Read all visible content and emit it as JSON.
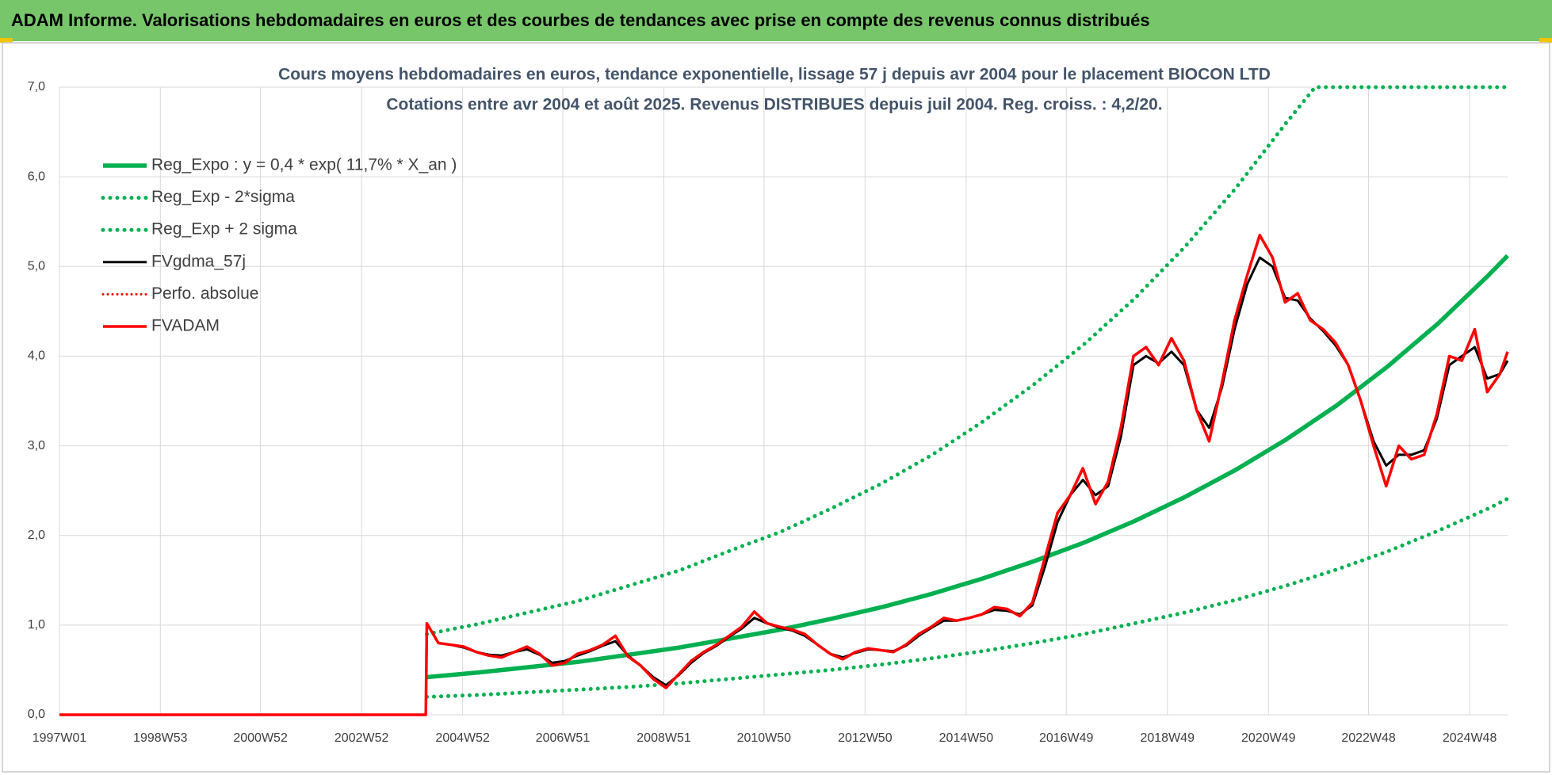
{
  "header": {
    "title": "ADAM Informe. Valorisations hebdomadaires en euros et des courbes de tendances avec prise en compte des revenus connus distribués"
  },
  "chart_data": {
    "type": "line",
    "title": "Cours moyens hebdomadaires en euros, tendance exponentielle, lissage 57 j depuis avr 2004 pour le placement BIOCON LTD",
    "subtitle": "Cotations entre avr 2004 et août 2025. Revenus DISTRIBUES depuis juil 2004. Reg. croiss. : 4,2/20.",
    "xlim": [
      "1997W01",
      "2025W35"
    ],
    "xticks": [
      "1997W01",
      "1998W53",
      "2000W52",
      "2002W52",
      "2004W52",
      "2006W51",
      "2008W51",
      "2010W50",
      "2012W50",
      "2014W50",
      "2016W49",
      "2018W49",
      "2020W49",
      "2022W48",
      "2024W48"
    ],
    "ylim": [
      0,
      7
    ],
    "yticks": [
      {
        "value": 0,
        "label": "0,0"
      },
      {
        "value": 1,
        "label": "1,0"
      },
      {
        "value": 2,
        "label": "2,0"
      },
      {
        "value": 3,
        "label": "3,0"
      },
      {
        "value": 4,
        "label": "4,0"
      },
      {
        "value": 5,
        "label": "5,0"
      },
      {
        "value": 6,
        "label": "6,0"
      },
      {
        "value": 7,
        "label": "7,0"
      }
    ],
    "grid": true,
    "legend": "top-left",
    "series": [
      {
        "name": "Reg_Expo : y = 0,4 * exp( 11,7% *  X_an )",
        "color": "#00b050",
        "style": "solid",
        "x": [
          "2004W15",
          "2005W15",
          "2006W15",
          "2007W15",
          "2008W15",
          "2009W15",
          "2010W15",
          "2011W15",
          "2012W15",
          "2013W15",
          "2014W15",
          "2015W15",
          "2016W15",
          "2017W15",
          "2018W15",
          "2019W15",
          "2020W15",
          "2021W15",
          "2022W15",
          "2023W15",
          "2024W15",
          "2025W15",
          "2025W35"
        ],
        "values": [
          0.42,
          0.47,
          0.53,
          0.59,
          0.67,
          0.75,
          0.85,
          0.95,
          1.07,
          1.2,
          1.35,
          1.52,
          1.71,
          1.92,
          2.16,
          2.43,
          2.73,
          3.07,
          3.45,
          3.88,
          4.36,
          4.9,
          5.12
        ]
      },
      {
        "name": "Reg_Exp - 2*sigma",
        "color": "#00b050",
        "style": "dotted",
        "x": [
          "2004W15",
          "2005W15",
          "2006W15",
          "2007W15",
          "2008W15",
          "2009W15",
          "2010W15",
          "2011W15",
          "2012W15",
          "2013W15",
          "2014W15",
          "2015W15",
          "2016W15",
          "2017W15",
          "2018W15",
          "2019W15",
          "2020W15",
          "2021W15",
          "2022W15",
          "2023W15",
          "2024W15",
          "2025W15",
          "2025W35"
        ],
        "values": [
          0.2,
          0.22,
          0.25,
          0.28,
          0.31,
          0.35,
          0.4,
          0.45,
          0.5,
          0.56,
          0.63,
          0.71,
          0.8,
          0.9,
          1.02,
          1.14,
          1.28,
          1.44,
          1.62,
          1.82,
          2.05,
          2.3,
          2.41
        ]
      },
      {
        "name": "Reg_Exp + 2 sigma",
        "color": "#00b050",
        "style": "dotted",
        "x": [
          "2004W15",
          "2005W15",
          "2006W15",
          "2007W15",
          "2008W15",
          "2009W15",
          "2010W15",
          "2011W15",
          "2012W15",
          "2013W15",
          "2014W15",
          "2015W15",
          "2016W15",
          "2017W15",
          "2018W15",
          "2019W15",
          "2020W15",
          "2021W15",
          "2021W45",
          "2022W15",
          "2023W15",
          "2024W15",
          "2025W15",
          "2025W35"
        ],
        "values": [
          0.9,
          1.01,
          1.14,
          1.27,
          1.44,
          1.61,
          1.83,
          2.04,
          2.3,
          2.58,
          2.9,
          3.27,
          3.68,
          4.13,
          4.64,
          5.22,
          5.87,
          6.6,
          7.0,
          7.0,
          7.0,
          7.0,
          7.0,
          7.0
        ]
      },
      {
        "name": "FVgdma_57j",
        "color": "#000000",
        "style": "solid",
        "x": [
          "2004W27",
          "2004W40",
          "2005W01",
          "2005W14",
          "2005W27",
          "2005W40",
          "2006W01",
          "2006W14",
          "2006W27",
          "2006W40",
          "2007W01",
          "2007W14",
          "2007W27",
          "2007W40",
          "2008W01",
          "2008W14",
          "2008W27",
          "2008W40",
          "2009W01",
          "2009W14",
          "2009W27",
          "2009W40",
          "2010W01",
          "2010W14",
          "2010W27",
          "2010W40",
          "2011W01",
          "2011W14",
          "2011W27",
          "2011W40",
          "2012W01",
          "2012W14",
          "2012W27",
          "2012W40",
          "2013W01",
          "2013W14",
          "2013W27",
          "2013W40",
          "2014W01",
          "2014W14",
          "2014W27",
          "2014W40",
          "2015W01",
          "2015W14",
          "2015W27",
          "2015W40",
          "2016W01",
          "2016W14",
          "2016W27",
          "2016W40",
          "2017W01",
          "2017W14",
          "2017W27",
          "2017W40",
          "2018W01",
          "2018W14",
          "2018W27",
          "2018W40",
          "2019W01",
          "2019W14",
          "2019W27",
          "2019W40",
          "2020W01",
          "2020W14",
          "2020W27",
          "2020W40",
          "2021W01",
          "2021W14",
          "2021W27",
          "2021W40",
          "2022W01",
          "2022W14",
          "2022W27",
          "2022W40",
          "2023W01",
          "2023W14",
          "2023W27",
          "2023W40",
          "2024W01",
          "2024W14",
          "2024W27",
          "2024W40",
          "2025W01",
          "2025W14",
          "2025W27",
          "2025W35"
        ],
        "values": [
          0.8,
          0.78,
          0.75,
          0.7,
          0.67,
          0.66,
          0.7,
          0.73,
          0.67,
          0.58,
          0.6,
          0.66,
          0.71,
          0.77,
          0.82,
          0.66,
          0.55,
          0.42,
          0.33,
          0.44,
          0.58,
          0.69,
          0.77,
          0.87,
          0.96,
          1.08,
          1.02,
          0.97,
          0.94,
          0.88,
          0.78,
          0.68,
          0.64,
          0.69,
          0.73,
          0.72,
          0.71,
          0.77,
          0.88,
          0.97,
          1.05,
          1.05,
          1.08,
          1.12,
          1.17,
          1.16,
          1.12,
          1.22,
          1.65,
          2.15,
          2.45,
          2.62,
          2.45,
          2.55,
          3.1,
          3.9,
          4.0,
          3.92,
          4.05,
          3.9,
          3.4,
          3.2,
          3.65,
          4.3,
          4.8,
          5.1,
          5.0,
          4.65,
          4.62,
          4.42,
          4.28,
          4.12,
          3.9,
          3.5,
          3.05,
          2.78,
          2.9,
          2.9,
          2.95,
          3.3,
          3.9,
          4.0,
          4.1,
          3.75,
          3.8,
          3.95
        ]
      },
      {
        "name": "Perfo. absolue",
        "color": "#ff0000",
        "style": "dotted",
        "x": [],
        "values": []
      },
      {
        "name": "FVADAM",
        "color": "#ff0000",
        "style": "solid",
        "x": [
          "1997W01",
          "2004W14",
          "2004W15",
          "2004W27",
          "2004W40",
          "2005W01",
          "2005W14",
          "2005W27",
          "2005W40",
          "2006W01",
          "2006W14",
          "2006W27",
          "2006W40",
          "2007W01",
          "2007W14",
          "2007W27",
          "2007W40",
          "2008W01",
          "2008W14",
          "2008W27",
          "2008W40",
          "2009W01",
          "2009W14",
          "2009W27",
          "2009W40",
          "2010W01",
          "2010W14",
          "2010W27",
          "2010W40",
          "2011W01",
          "2011W14",
          "2011W27",
          "2011W40",
          "2012W01",
          "2012W14",
          "2012W27",
          "2012W40",
          "2013W01",
          "2013W14",
          "2013W27",
          "2013W40",
          "2014W01",
          "2014W14",
          "2014W27",
          "2014W40",
          "2015W01",
          "2015W14",
          "2015W27",
          "2015W40",
          "2016W01",
          "2016W14",
          "2016W27",
          "2016W40",
          "2017W01",
          "2017W14",
          "2017W27",
          "2017W40",
          "2018W01",
          "2018W14",
          "2018W27",
          "2018W40",
          "2019W01",
          "2019W14",
          "2019W27",
          "2019W40",
          "2020W01",
          "2020W14",
          "2020W27",
          "2020W40",
          "2021W01",
          "2021W14",
          "2021W27",
          "2021W40",
          "2022W01",
          "2022W14",
          "2022W27",
          "2022W40",
          "2023W01",
          "2023W14",
          "2023W27",
          "2023W40",
          "2024W01",
          "2024W14",
          "2024W27",
          "2024W40",
          "2025W01",
          "2025W14",
          "2025W27",
          "2025W35"
        ],
        "values": [
          0,
          0,
          1.02,
          0.8,
          0.78,
          0.76,
          0.7,
          0.66,
          0.64,
          0.7,
          0.76,
          0.68,
          0.55,
          0.58,
          0.68,
          0.72,
          0.78,
          0.88,
          0.65,
          0.55,
          0.4,
          0.3,
          0.45,
          0.6,
          0.7,
          0.78,
          0.88,
          0.98,
          1.15,
          1.02,
          0.98,
          0.95,
          0.9,
          0.78,
          0.68,
          0.62,
          0.7,
          0.74,
          0.72,
          0.7,
          0.78,
          0.9,
          0.98,
          1.08,
          1.05,
          1.08,
          1.12,
          1.2,
          1.18,
          1.1,
          1.25,
          1.75,
          2.25,
          2.45,
          2.75,
          2.35,
          2.6,
          3.2,
          4.0,
          4.1,
          3.9,
          4.2,
          3.95,
          3.4,
          3.05,
          3.7,
          4.4,
          4.9,
          5.35,
          5.1,
          4.6,
          4.7,
          4.4,
          4.3,
          4.15,
          3.9,
          3.5,
          3.0,
          2.55,
          3.0,
          2.85,
          2.9,
          3.35,
          4.0,
          3.95,
          4.3,
          3.6,
          3.8,
          4.05
        ]
      }
    ]
  }
}
